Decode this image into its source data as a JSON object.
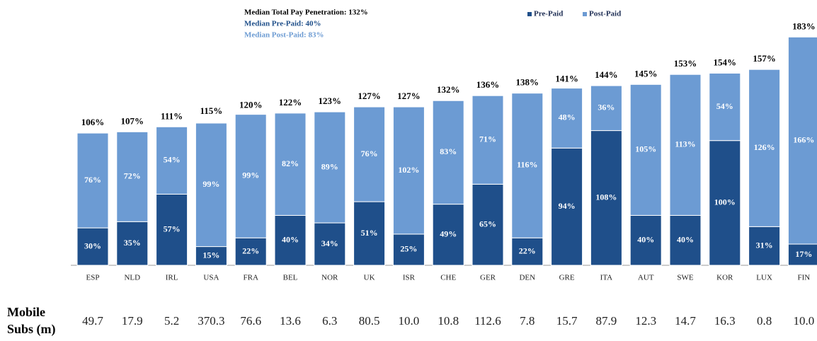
{
  "chart_data": {
    "type": "stacked_bar",
    "annotations": [
      "Median Total Pay Penetration: 132%",
      "Median Pre-Paid: 40%",
      "Median Post-Paid: 83%"
    ],
    "categories": [
      "ESP",
      "NLD",
      "IRL",
      "USA",
      "FRA",
      "BEL",
      "NOR",
      "UK",
      "ISR",
      "CHE",
      "GER",
      "DEN",
      "GRE",
      "ITA",
      "AUT",
      "SWE",
      "KOR",
      "LUX",
      "FIN"
    ],
    "series": [
      {
        "name": "Pre-Paid",
        "color": "#1f4f8a",
        "values": [
          30,
          35,
          57,
          15,
          22,
          40,
          34,
          51,
          25,
          49,
          65,
          22,
          94,
          108,
          40,
          40,
          100,
          31,
          17
        ],
        "value_labels": [
          "30%",
          "35%",
          "57%",
          "15%",
          "22%",
          "40%",
          "34%",
          "51%",
          "25%",
          "49%",
          "65%",
          "22%",
          "94%",
          "108%",
          "40%",
          "40%",
          "100%",
          "31%",
          "17%"
        ]
      },
      {
        "name": "Post-Paid",
        "color": "#6c9bd3",
        "values": [
          76,
          72,
          54,
          99,
          99,
          82,
          89,
          76,
          102,
          83,
          71,
          116,
          48,
          36,
          105,
          113,
          54,
          126,
          166
        ],
        "value_labels": [
          "76%",
          "72%",
          "54%",
          "99%",
          "99%",
          "82%",
          "89%",
          "76%",
          "102%",
          "83%",
          "71%",
          "116%",
          "48%",
          "36%",
          "105%",
          "113%",
          "54%",
          "126%",
          "166%"
        ]
      }
    ],
    "totals": {
      "values": [
        106,
        107,
        111,
        115,
        120,
        122,
        123,
        127,
        127,
        132,
        136,
        138,
        141,
        144,
        145,
        153,
        154,
        157,
        183
      ],
      "value_labels": [
        "106%",
        "107%",
        "111%",
        "115%",
        "120%",
        "122%",
        "123%",
        "127%",
        "127%",
        "132%",
        "136%",
        "138%",
        "141%",
        "144%",
        "145%",
        "153%",
        "154%",
        "157%",
        "183%"
      ]
    },
    "mobile_subs": {
      "label": [
        "Mobile",
        "Subs (m)"
      ],
      "values": [
        49.7,
        17.9,
        5.2,
        370.3,
        76.6,
        13.6,
        6.3,
        80.5,
        10.0,
        10.8,
        112.6,
        7.8,
        15.7,
        87.9,
        12.3,
        14.7,
        16.3,
        0.8,
        10.0
      ],
      "value_labels": [
        "49.7",
        "17.9",
        "5.2",
        "370.3",
        "76.6",
        "13.6",
        "6.3",
        "80.5",
        "10.0",
        "10.8",
        "112.6",
        "7.8",
        "15.7",
        "87.9",
        "12.3",
        "14.7",
        "16.3",
        "0.8",
        "10.0"
      ]
    },
    "ylim": [
      0,
      190
    ]
  }
}
